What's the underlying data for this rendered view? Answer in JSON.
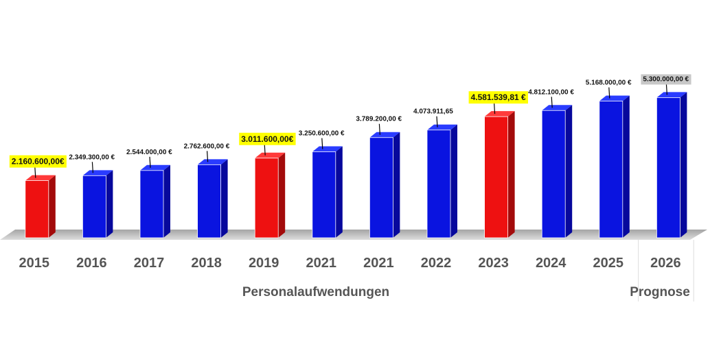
{
  "chart_data": {
    "type": "bar",
    "title": "",
    "xlabel": "Personalaufwendungen",
    "ylabel": "",
    "forecast_label": "Prognose",
    "categories": [
      "2015",
      "2016",
      "2017",
      "2018",
      "2019",
      "2021",
      "2021",
      "2022",
      "2023",
      "2024",
      "2025",
      "2026"
    ],
    "values": [
      2160600.0,
      2349300.0,
      2544000.0,
      2762600.0,
      3011600.0,
      3250600.0,
      3789200.0,
      4073911.65,
      4581539.81,
      4812100.0,
      5168000.0,
      5300000.0
    ],
    "value_labels": [
      "2.160.600,00€",
      "2.349.300,00   €",
      "2.544.000,00   €",
      "2.762.600,00   €",
      "3.011.600,00€",
      "3.250.600,00   €",
      "3.789.200,00   €",
      "4.073.911,65",
      "4.581.539,81  €",
      "4.812.100,00   €",
      "5.168.000,00   €",
      "5.300.000,00   €"
    ],
    "bar_colors": [
      "red",
      "blue",
      "blue",
      "blue",
      "red",
      "blue",
      "blue",
      "blue",
      "red",
      "blue",
      "blue",
      "blue"
    ],
    "label_highlight": [
      "yellow",
      "none",
      "none",
      "none",
      "yellow",
      "none",
      "none",
      "none",
      "yellow",
      "none",
      "none",
      "gray"
    ],
    "forecast_index": 11,
    "colors": {
      "blue_front": "#0a14e0",
      "blue_side": "#07089c",
      "blue_top": "#2a3cff",
      "red_front": "#ee1111",
      "red_side": "#a30b0b",
      "red_top": "#ff3a3a",
      "highlight_yellow": "#ffff00",
      "highlight_gray": "#c8c8c8",
      "category_text": "#555555",
      "floor_shadow": "#7a7a7a"
    }
  }
}
